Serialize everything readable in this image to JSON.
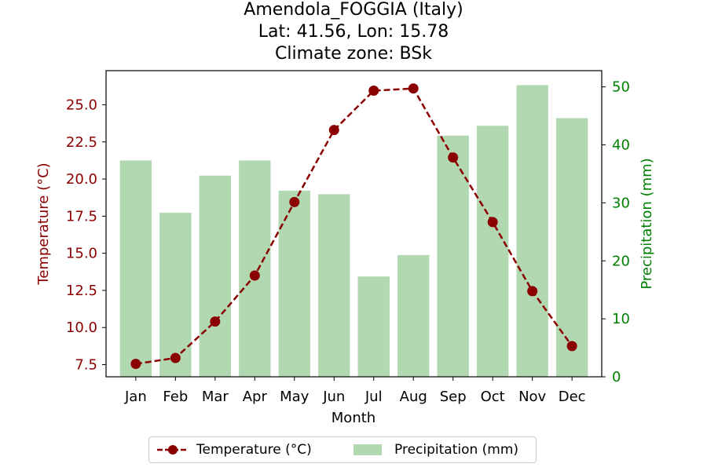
{
  "title": {
    "line1": "Amendola_FOGGIA (Italy)",
    "line2": "Lat: 41.56, Lon: 15.78",
    "line3": "Climate zone: BSk"
  },
  "colors": {
    "temperature": "#8b0000",
    "precipitation": "#008000",
    "bar_fill": "#b2d8b2"
  },
  "legend": {
    "temperature_label": "Temperature (°C)",
    "precipitation_label": "Precipitation (mm)"
  },
  "chart_data": {
    "type": "bar",
    "categories": [
      "Jan",
      "Feb",
      "Mar",
      "Apr",
      "May",
      "Jun",
      "Jul",
      "Aug",
      "Sep",
      "Oct",
      "Nov",
      "Dec"
    ],
    "xlabel": "Month",
    "series": [
      {
        "name": "Precipitation (mm)",
        "type": "bar",
        "axis": "right",
        "values": [
          37.3,
          28.3,
          34.7,
          37.3,
          32.1,
          31.5,
          17.3,
          21.0,
          41.6,
          43.3,
          50.3,
          44.6
        ]
      },
      {
        "name": "Temperature (°C)",
        "type": "line",
        "axis": "left",
        "values": [
          7.55,
          7.95,
          10.4,
          13.5,
          18.45,
          23.3,
          25.95,
          26.1,
          21.45,
          17.1,
          12.45,
          8.75
        ]
      }
    ],
    "y_left": {
      "label": "Temperature (°C)",
      "lim": [
        6.68,
        27.3
      ],
      "ticks": [
        7.5,
        10.0,
        12.5,
        15.0,
        17.5,
        20.0,
        22.5,
        25.0
      ],
      "tick_labels": [
        "7.5",
        "10.0",
        "12.5",
        "15.0",
        "17.5",
        "20.0",
        "22.5",
        "25.0"
      ]
    },
    "y_right": {
      "label": "Precipitation (mm)",
      "lim": [
        0,
        52.8
      ],
      "ticks": [
        0,
        10,
        20,
        30,
        40,
        50
      ],
      "tick_labels": [
        "0",
        "10",
        "20",
        "30",
        "40",
        "50"
      ]
    },
    "grid": false,
    "legend_position": "bottom-center"
  }
}
